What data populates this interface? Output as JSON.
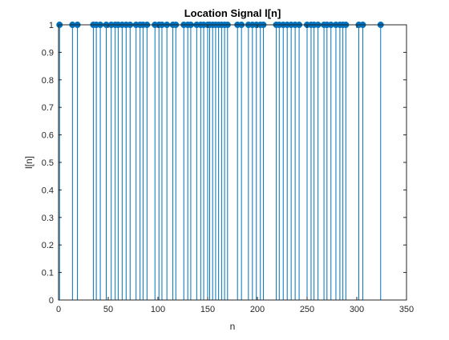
{
  "chart_data": {
    "type": "stem",
    "title": "Location Signal l[n]",
    "xlabel": "n",
    "ylabel": "l[n]",
    "xlim": [
      0,
      350
    ],
    "ylim": [
      0,
      1
    ],
    "xticks": [
      0,
      50,
      100,
      150,
      200,
      250,
      300,
      350
    ],
    "yticks": [
      0,
      0.1,
      0.2,
      0.3,
      0.4,
      0.5,
      0.6,
      0.7,
      0.8,
      0.9,
      1
    ],
    "xtick_labels": [
      "0",
      "50",
      "100",
      "150",
      "200",
      "250",
      "300",
      "350"
    ],
    "ytick_labels": [
      "0",
      "0.1",
      "0.2",
      "0.3",
      "0.4",
      "0.5",
      "0.6",
      "0.7",
      "0.8",
      "0.9",
      "1"
    ],
    "grid": false,
    "series_color": "#0072BD",
    "x": [
      1,
      14,
      19,
      35,
      38,
      42,
      48,
      53,
      57,
      60,
      64,
      68,
      72,
      78,
      82,
      85,
      89,
      97,
      101,
      104,
      109,
      115,
      118,
      126,
      130,
      133,
      139,
      143,
      146,
      150,
      152,
      155,
      158,
      161,
      164,
      167,
      170,
      180,
      184,
      191,
      195,
      199,
      203,
      206,
      219,
      222,
      226,
      230,
      234,
      238,
      242,
      250,
      254,
      257,
      261,
      267,
      270,
      274,
      279,
      283,
      286,
      289,
      302,
      306,
      324
    ],
    "values": [
      1,
      1,
      1,
      1,
      1,
      1,
      1,
      1,
      1,
      1,
      1,
      1,
      1,
      1,
      1,
      1,
      1,
      1,
      1,
      1,
      1,
      1,
      1,
      1,
      1,
      1,
      1,
      1,
      1,
      1,
      1,
      1,
      1,
      1,
      1,
      1,
      1,
      1,
      1,
      1,
      1,
      1,
      1,
      1,
      1,
      1,
      1,
      1,
      1,
      1,
      1,
      1,
      1,
      1,
      1,
      1,
      1,
      1,
      1,
      1,
      1,
      1,
      1,
      1,
      1
    ]
  }
}
